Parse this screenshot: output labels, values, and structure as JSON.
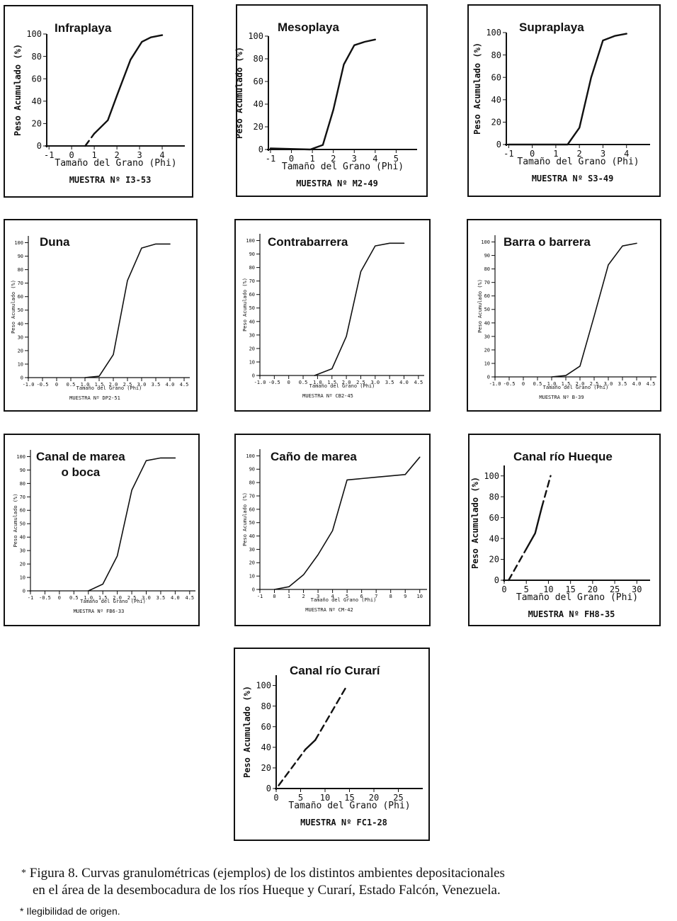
{
  "chart_data": [
    {
      "type": "line",
      "title": "Infraplaya",
      "xlabel": "Tamaño del Grano (Phi)",
      "ylabel": "Peso Acumulado (%)",
      "sample": "MUESTRA Nº I3-53",
      "xticks": [
        -1,
        0,
        1,
        2,
        3,
        4
      ],
      "tick_labels": [
        "-1",
        "0",
        "1",
        "2",
        "3",
        "4"
      ],
      "yticks": [
        0,
        20,
        40,
        60,
        80,
        100
      ],
      "ytick_labels": [
        "0",
        "20",
        "40",
        "60",
        "80",
        "100"
      ],
      "xlim": [
        -1.1,
        5.0
      ],
      "ylim": [
        0,
        100
      ],
      "series": [
        {
          "name": "dashed",
          "style": "dashed",
          "x": [
            0.6,
            1.0
          ],
          "y": [
            0,
            11
          ]
        },
        {
          "name": "curve",
          "style": "solid",
          "x": [
            1.0,
            1.6,
            2.0,
            2.6,
            3.1,
            3.5,
            4.0
          ],
          "y": [
            11,
            23,
            45,
            77,
            93,
            97,
            99
          ]
        }
      ]
    },
    {
      "type": "line",
      "title": "Mesoplaya",
      "xlabel": "Tamaño del Grano (Phi)",
      "ylabel": "Peso Acumulado (%)",
      "sample": "MUESTRA Nº M2-49",
      "xticks": [
        -1,
        0,
        1,
        2,
        3,
        4,
        5
      ],
      "tick_labels": [
        "-1",
        "0",
        "1",
        "2",
        "3",
        "4",
        "5"
      ],
      "yticks": [
        0,
        20,
        40,
        60,
        80,
        100
      ],
      "ytick_labels": [
        "0",
        "20",
        "40",
        "60",
        "80",
        "100"
      ],
      "xlim": [
        -1.1,
        6.0
      ],
      "ylim": [
        0,
        100
      ],
      "series": [
        {
          "name": "curve",
          "style": "solid",
          "x": [
            -1,
            0.9,
            1.5,
            2.0,
            2.5,
            3.0,
            3.5,
            4.0
          ],
          "y": [
            1,
            0,
            4,
            35,
            75,
            92,
            95,
            97
          ]
        }
      ]
    },
    {
      "type": "line",
      "title": "Supraplaya",
      "xlabel": "Tamaño del Grano (Phi)",
      "ylabel": "Peso Acumulado (%)",
      "sample": "MUESTRA Nº S3-49",
      "xticks": [
        -1,
        0,
        1,
        2,
        3,
        4
      ],
      "tick_labels": [
        "-1",
        "0",
        "1",
        "2",
        "3",
        "4"
      ],
      "yticks": [
        0,
        20,
        40,
        60,
        80,
        100
      ],
      "ytick_labels": [
        "0",
        "20",
        "40",
        "60",
        "80",
        "100"
      ],
      "xlim": [
        -1.1,
        5.0
      ],
      "ylim": [
        0,
        100
      ],
      "series": [
        {
          "name": "curve",
          "style": "solid",
          "x": [
            -1,
            1.5,
            2.0,
            2.5,
            3.0,
            3.5,
            4.0
          ],
          "y": [
            0,
            0,
            15,
            60,
            93,
            97,
            99
          ]
        }
      ]
    },
    {
      "type": "line",
      "title": "Duna",
      "xlabel": "Tamaño del Grano (Phi)",
      "ylabel": "Peso Acumulado (%)",
      "sample": "MUESTRA Nº DP2-51",
      "xticks": [
        -1.0,
        -0.5,
        0,
        0.5,
        1.0,
        1.5,
        2.0,
        2.5,
        3.0,
        3.5,
        4.0,
        4.5
      ],
      "tick_labels": [
        "-1.0",
        "-0.5",
        "0",
        "0.5",
        "1.0",
        "1.5",
        "2.0",
        "2.5",
        "3.0",
        "3.5",
        "4.0",
        "4.5"
      ],
      "yticks": [
        0,
        10,
        20,
        30,
        40,
        50,
        60,
        70,
        80,
        90,
        100
      ],
      "ytick_labels": [
        "0",
        "10",
        "20",
        "30",
        "40",
        "50",
        "60",
        "70",
        "80",
        "90",
        "100"
      ],
      "xlim": [
        -1.0,
        4.7
      ],
      "ylim": [
        0,
        105
      ],
      "series": [
        {
          "name": "curve",
          "style": "solid",
          "x": [
            1.0,
            1.5,
            2.0,
            2.5,
            3.0,
            3.5,
            4.0
          ],
          "y": [
            0,
            1,
            17,
            72,
            96,
            99,
            99
          ]
        }
      ]
    },
    {
      "type": "line",
      "title": "Contrabarrera",
      "xlabel": "Tamaño del Grano (Phi)",
      "ylabel": "Peso Acumulado (%)",
      "sample": "MUESTRA Nº CB2-45",
      "xticks": [
        -1.0,
        -0.5,
        0,
        0.5,
        1.0,
        1.5,
        2.0,
        2.5,
        3.0,
        3.5,
        4.0,
        4.5
      ],
      "tick_labels": [
        "-1.0",
        "-0.5",
        "0",
        "0.5",
        "1.0",
        "1.5",
        "2.0",
        "2.5",
        "3.0",
        "3.5",
        "4.0",
        "4.5"
      ],
      "yticks": [
        0,
        10,
        20,
        30,
        40,
        50,
        60,
        70,
        80,
        90,
        100
      ],
      "ytick_labels": [
        "0",
        "10",
        "20",
        "30",
        "40",
        "50",
        "60",
        "70",
        "80",
        "90",
        "100"
      ],
      "xlim": [
        -1.0,
        4.7
      ],
      "ylim": [
        0,
        105
      ],
      "series": [
        {
          "name": "curve",
          "style": "solid",
          "x": [
            0.9,
            1.5,
            2.0,
            2.5,
            3.0,
            3.5,
            4.0
          ],
          "y": [
            0,
            5,
            29,
            77,
            96,
            98,
            98
          ]
        }
      ]
    },
    {
      "type": "line",
      "title": "Barra o barrera",
      "xlabel": "Tamaño del Grano (Phi)",
      "ylabel": "Peso Acumulado (%)",
      "sample": "MUESTRA Nº B-39",
      "xticks": [
        -1.0,
        -0.5,
        0,
        0.5,
        1.0,
        1.5,
        2.0,
        2.5,
        3.0,
        3.5,
        4.0,
        4.5
      ],
      "tick_labels": [
        "-1.0",
        "-0.5",
        "0",
        "0.5",
        "1.0",
        "1.5",
        "2.0",
        "2.5",
        "3.0",
        "3.5",
        "4.0",
        "4.5"
      ],
      "yticks": [
        0,
        10,
        20,
        30,
        40,
        50,
        60,
        70,
        80,
        90,
        100
      ],
      "ytick_labels": [
        "0",
        "10",
        "20",
        "30",
        "40",
        "50",
        "60",
        "70",
        "80",
        "90",
        "100"
      ],
      "xlim": [
        -1.0,
        4.7
      ],
      "ylim": [
        0,
        105
      ],
      "series": [
        {
          "name": "curve",
          "style": "solid",
          "x": [
            1.0,
            1.5,
            2.0,
            2.5,
            3.0,
            3.5,
            4.0
          ],
          "y": [
            0,
            1,
            8,
            45,
            83,
            97,
            99
          ]
        }
      ]
    },
    {
      "type": "line",
      "title": "Canal de marea\no boca",
      "xlabel": "Tamaño del Grano (Phi)",
      "ylabel": "Peso Acumulado (%)",
      "sample": "MUESTRA Nº FB6-33",
      "xticks": [
        -1,
        -0.5,
        0,
        0.5,
        1.0,
        1.5,
        2.0,
        2.5,
        3.0,
        3.5,
        4.0,
        4.5
      ],
      "tick_labels": [
        "-1",
        "-0.5",
        "0",
        "0.5",
        "1.0",
        "1.5",
        "2.0",
        "2.5",
        "3.0",
        "3.5",
        "4.0",
        "4.5"
      ],
      "yticks": [
        0,
        10,
        20,
        30,
        40,
        50,
        60,
        70,
        80,
        90,
        100
      ],
      "ytick_labels": [
        "0",
        "10",
        "20",
        "30",
        "40",
        "50",
        "60",
        "70",
        "80",
        "90",
        "100"
      ],
      "xlim": [
        -1.0,
        4.7
      ],
      "ylim": [
        0,
        105
      ],
      "series": [
        {
          "name": "curve",
          "style": "solid",
          "x": [
            1.0,
            1.5,
            2.0,
            2.5,
            3.0,
            3.5,
            4.0
          ],
          "y": [
            0,
            5,
            26,
            75,
            97,
            99,
            99
          ]
        }
      ]
    },
    {
      "type": "line",
      "title": "Caño de marea",
      "xlabel": "Tamaño del Grano (Phi)",
      "ylabel": "Peso Acumulado (%)",
      "sample": "MUESTRA Nº CM-42",
      "xticks": [
        -1,
        0,
        1,
        2,
        3,
        4,
        5,
        6,
        7,
        8,
        9,
        10
      ],
      "tick_labels": [
        "-1",
        "0",
        "1",
        "2",
        "3",
        "4",
        "5",
        "6",
        "7",
        "8",
        "9",
        "10"
      ],
      "yticks": [
        0,
        10,
        20,
        30,
        40,
        50,
        60,
        70,
        80,
        90,
        100
      ],
      "ytick_labels": [
        "0",
        "10",
        "20",
        "30",
        "40",
        "50",
        "60",
        "70",
        "80",
        "90",
        "100"
      ],
      "xlim": [
        -1.0,
        10.5
      ],
      "ylim": [
        0,
        105
      ],
      "series": [
        {
          "name": "curve",
          "style": "solid",
          "x": [
            0,
            1,
            2,
            3,
            4,
            5,
            6,
            7,
            8,
            9,
            10
          ],
          "y": [
            0,
            2,
            11,
            26,
            44,
            82,
            83,
            84,
            85,
            86,
            99
          ]
        }
      ]
    },
    {
      "type": "line",
      "title": "Canal río Hueque",
      "xlabel": "Tamaño del Grano (Phi)",
      "ylabel": "Peso Acumulado (%)",
      "sample": "MUESTRA Nº   FH8-35",
      "xticks": [
        0,
        5,
        10,
        15,
        20,
        25,
        30
      ],
      "tick_labels": [
        "0",
        "5",
        "10",
        "15",
        "20",
        "25",
        "30"
      ],
      "yticks": [
        0,
        20,
        40,
        60,
        80,
        100
      ],
      "ytick_labels": [
        "0",
        "20",
        "40",
        "60",
        "80",
        "100"
      ],
      "xlim": [
        0,
        33
      ],
      "ylim": [
        0,
        110
      ],
      "series": [
        {
          "name": "dashed_low",
          "style": "dashed",
          "x": [
            1,
            5
          ],
          "y": [
            0,
            30
          ]
        },
        {
          "name": "solid_mid",
          "style": "solid",
          "x": [
            5,
            7,
            8.5
          ],
          "y": [
            30,
            45,
            70
          ]
        },
        {
          "name": "dashed_high",
          "style": "dashed",
          "x": [
            8.5,
            10.5
          ],
          "y": [
            70,
            100
          ]
        }
      ]
    },
    {
      "type": "line",
      "title": "Canal río Curarí",
      "xlabel": "Tamaño del Grano (Phi)",
      "ylabel": "Peso Acumulado (%)",
      "sample": "MUESTRA Nº FC1-28",
      "xticks": [
        0,
        5,
        10,
        15,
        20,
        25
      ],
      "tick_labels": [
        "0",
        "5",
        "10",
        "15",
        "20",
        "25"
      ],
      "yticks": [
        0,
        20,
        40,
        60,
        80,
        100
      ],
      "ytick_labels": [
        "0",
        "20",
        "40",
        "60",
        "80",
        "100"
      ],
      "xlim": [
        0,
        30
      ],
      "ylim": [
        0,
        110
      ],
      "series": [
        {
          "name": "dashed_low",
          "style": "dashed",
          "x": [
            0.5,
            6
          ],
          "y": [
            3,
            38
          ]
        },
        {
          "name": "solid_mid",
          "style": "solid",
          "x": [
            6,
            8
          ],
          "y": [
            38,
            47
          ]
        },
        {
          "name": "dashed_high",
          "style": "dashed",
          "x": [
            8,
            14.5
          ],
          "y": [
            47,
            100
          ]
        }
      ]
    }
  ],
  "caption": {
    "marker": "*",
    "line1": "Figura 8. Curvas granulométricas (ejemplos) de los distintos ambientes depositacionales",
    "line2": "en el área de la desembocadura de los ríos Hueque y Curarí, Estado Falcón, Venezuela."
  },
  "footnote": "* Ilegibilidad de origen."
}
